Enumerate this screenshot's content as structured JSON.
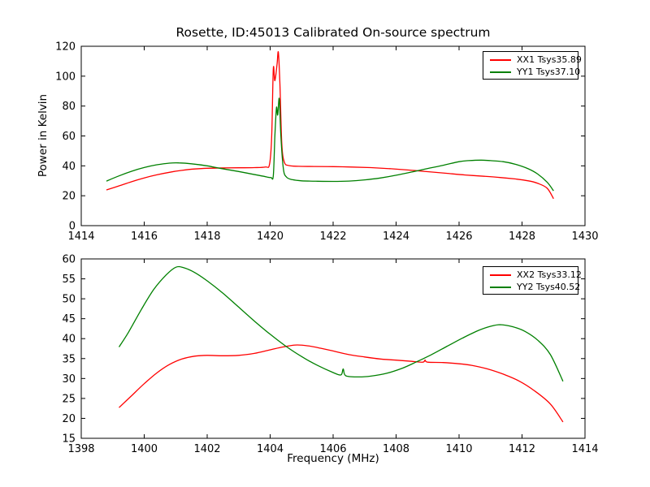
{
  "figure": {
    "background": "#ffffff",
    "frame_color": "#000000",
    "text_color": "#000000"
  },
  "chart_data": [
    {
      "type": "line",
      "title": "Rosette, ID:45013 Calibrated On-source spectrum",
      "xlabel": "",
      "ylabel": "Power in Kelvin",
      "xlim": [
        1414,
        1430
      ],
      "ylim": [
        0,
        120
      ],
      "xticks": [
        1414,
        1416,
        1418,
        1420,
        1422,
        1424,
        1426,
        1428,
        1430
      ],
      "yticks": [
        0,
        20,
        40,
        60,
        80,
        100,
        120
      ],
      "grid": false,
      "legend_position": "upper right",
      "series": [
        {
          "name": "XX1 Tsys35.89",
          "color": "#ff0000",
          "points": [
            [
              1414.8,
              23.9
            ],
            [
              1415.2,
              26.6
            ],
            [
              1415.6,
              29.4
            ],
            [
              1416.0,
              31.9
            ],
            [
              1416.4,
              34.0
            ],
            [
              1416.8,
              35.7
            ],
            [
              1417.2,
              37.0
            ],
            [
              1417.6,
              37.9
            ],
            [
              1418.0,
              38.4
            ],
            [
              1418.5,
              38.6
            ],
            [
              1419.0,
              38.7
            ],
            [
              1419.5,
              38.8
            ],
            [
              1419.85,
              39.2
            ],
            [
              1419.98,
              41.0
            ],
            [
              1420.05,
              60.0
            ],
            [
              1420.1,
              105.0
            ],
            [
              1420.15,
              97.0
            ],
            [
              1420.22,
              108.0
            ],
            [
              1420.26,
              116.0
            ],
            [
              1420.31,
              95.0
            ],
            [
              1420.37,
              55.0
            ],
            [
              1420.45,
              42.5
            ],
            [
              1420.6,
              40.2
            ],
            [
              1420.9,
              39.7
            ],
            [
              1421.4,
              39.6
            ],
            [
              1422.0,
              39.5
            ],
            [
              1422.6,
              39.2
            ],
            [
              1423.2,
              38.8
            ],
            [
              1423.8,
              38.1
            ],
            [
              1424.4,
              37.2
            ],
            [
              1425.0,
              36.1
            ],
            [
              1425.6,
              35.0
            ],
            [
              1426.2,
              33.9
            ],
            [
              1426.8,
              33.0
            ],
            [
              1427.3,
              32.2
            ],
            [
              1427.8,
              31.2
            ],
            [
              1428.2,
              30.0
            ],
            [
              1428.5,
              28.3
            ],
            [
              1428.8,
              25.0
            ],
            [
              1429.0,
              18.0
            ]
          ]
        },
        {
          "name": "YY1 Tsys37.10",
          "color": "#008000",
          "points": [
            [
              1414.8,
              29.8
            ],
            [
              1415.2,
              33.3
            ],
            [
              1415.6,
              36.4
            ],
            [
              1416.0,
              38.9
            ],
            [
              1416.4,
              40.7
            ],
            [
              1416.8,
              41.8
            ],
            [
              1417.1,
              42.0
            ],
            [
              1417.5,
              41.4
            ],
            [
              1418.0,
              40.0
            ],
            [
              1418.4,
              38.4
            ],
            [
              1419.0,
              36.2
            ],
            [
              1419.4,
              34.6
            ],
            [
              1419.8,
              33.0
            ],
            [
              1420.02,
              32.2
            ],
            [
              1420.1,
              33.5
            ],
            [
              1420.15,
              60.0
            ],
            [
              1420.2,
              79.0
            ],
            [
              1420.24,
              74.0
            ],
            [
              1420.29,
              85.0
            ],
            [
              1420.34,
              60.0
            ],
            [
              1420.42,
              38.0
            ],
            [
              1420.52,
              32.5
            ],
            [
              1420.7,
              30.8
            ],
            [
              1421.0,
              30.0
            ],
            [
              1421.5,
              29.7
            ],
            [
              1422.0,
              29.6
            ],
            [
              1422.5,
              29.8
            ],
            [
              1423.0,
              30.6
            ],
            [
              1423.5,
              31.9
            ],
            [
              1424.0,
              33.7
            ],
            [
              1424.5,
              35.9
            ],
            [
              1425.0,
              38.2
            ],
            [
              1425.5,
              40.4
            ],
            [
              1426.0,
              42.8
            ],
            [
              1426.3,
              43.5
            ],
            [
              1426.7,
              43.8
            ],
            [
              1427.0,
              43.5
            ],
            [
              1427.4,
              42.8
            ],
            [
              1427.8,
              41.0
            ],
            [
              1428.2,
              38.0
            ],
            [
              1428.5,
              34.5
            ],
            [
              1428.8,
              29.0
            ],
            [
              1429.0,
              23.3
            ]
          ]
        }
      ]
    },
    {
      "type": "line",
      "title": "",
      "xlabel": "Frequency (MHz)",
      "ylabel": "",
      "xlim": [
        1398,
        1414
      ],
      "ylim": [
        15,
        60
      ],
      "xticks": [
        1398,
        1400,
        1402,
        1404,
        1406,
        1408,
        1410,
        1412,
        1414
      ],
      "yticks": [
        15,
        20,
        25,
        30,
        35,
        40,
        45,
        50,
        55,
        60
      ],
      "grid": false,
      "legend_position": "upper right",
      "series": [
        {
          "name": "XX2 Tsys33.12",
          "color": "#ff0000",
          "points": [
            [
              1399.2,
              22.7
            ],
            [
              1399.6,
              25.7
            ],
            [
              1400.0,
              28.7
            ],
            [
              1400.4,
              31.4
            ],
            [
              1400.8,
              33.5
            ],
            [
              1401.2,
              34.9
            ],
            [
              1401.6,
              35.6
            ],
            [
              1402.0,
              35.8
            ],
            [
              1402.5,
              35.7
            ],
            [
              1403.0,
              35.8
            ],
            [
              1403.5,
              36.3
            ],
            [
              1404.0,
              37.2
            ],
            [
              1404.4,
              37.9
            ],
            [
              1404.8,
              38.4
            ],
            [
              1405.2,
              38.2
            ],
            [
              1405.6,
              37.6
            ],
            [
              1406.0,
              36.9
            ],
            [
              1406.5,
              36.0
            ],
            [
              1407.0,
              35.4
            ],
            [
              1407.5,
              34.9
            ],
            [
              1408.0,
              34.6
            ],
            [
              1408.5,
              34.3
            ],
            [
              1408.85,
              34.1
            ],
            [
              1408.92,
              34.6
            ],
            [
              1409.0,
              34.1
            ],
            [
              1409.5,
              34.0
            ],
            [
              1410.0,
              33.7
            ],
            [
              1410.4,
              33.3
            ],
            [
              1410.9,
              32.4
            ],
            [
              1411.4,
              31.1
            ],
            [
              1411.9,
              29.4
            ],
            [
              1412.4,
              26.9
            ],
            [
              1412.9,
              23.6
            ],
            [
              1413.3,
              19.1
            ]
          ]
        },
        {
          "name": "YY2 Tsys40.52",
          "color": "#008000",
          "points": [
            [
              1399.2,
              37.9
            ],
            [
              1399.5,
              41.6
            ],
            [
              1399.9,
              47.2
            ],
            [
              1400.3,
              52.3
            ],
            [
              1400.7,
              56.0
            ],
            [
              1401.0,
              57.9
            ],
            [
              1401.25,
              57.8
            ],
            [
              1401.6,
              56.6
            ],
            [
              1402.0,
              54.5
            ],
            [
              1402.5,
              51.4
            ],
            [
              1403.0,
              47.9
            ],
            [
              1403.5,
              44.4
            ],
            [
              1404.0,
              41.1
            ],
            [
              1404.5,
              38.1
            ],
            [
              1405.0,
              35.5
            ],
            [
              1405.5,
              33.3
            ],
            [
              1406.0,
              31.5
            ],
            [
              1406.25,
              30.9
            ],
            [
              1406.32,
              32.4
            ],
            [
              1406.4,
              30.7
            ],
            [
              1406.8,
              30.4
            ],
            [
              1407.2,
              30.6
            ],
            [
              1407.7,
              31.3
            ],
            [
              1408.2,
              32.6
            ],
            [
              1408.6,
              34.0
            ],
            [
              1409.1,
              35.9
            ],
            [
              1409.6,
              38.0
            ],
            [
              1410.1,
              40.1
            ],
            [
              1410.6,
              42.0
            ],
            [
              1411.0,
              43.1
            ],
            [
              1411.3,
              43.5
            ],
            [
              1411.7,
              43.0
            ],
            [
              1412.1,
              41.8
            ],
            [
              1412.5,
              39.6
            ],
            [
              1412.9,
              36.0
            ],
            [
              1413.3,
              29.3
            ]
          ]
        }
      ]
    }
  ]
}
